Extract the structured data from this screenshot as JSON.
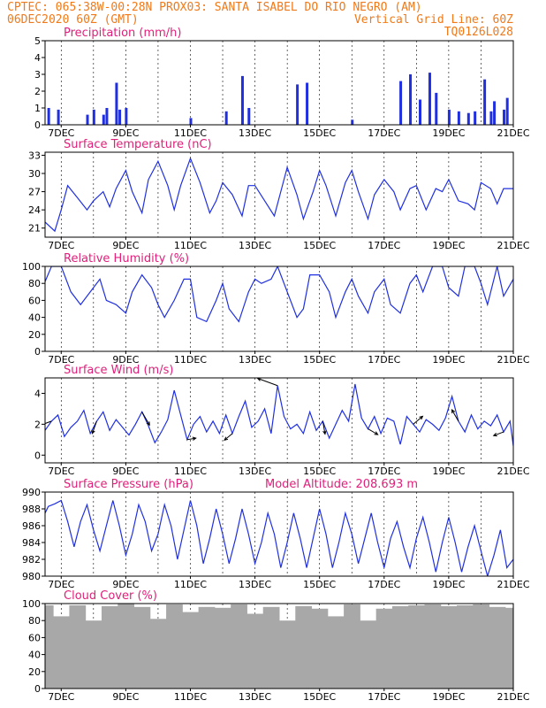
{
  "header": {
    "line1_left": "CPTEC:  065:38W-00:28N  PROX03: SANTA ISABEL DO RIO NEGRO (AM)",
    "line2_left": "06DEC2020 60Z (GMT)",
    "line2_right": "Vertical Grid Line: 60Z",
    "line3_right": "TQ0126L028"
  },
  "colors": {
    "header": "#f07a1a",
    "panel_title": "#e0207a",
    "series": "#2030e0",
    "cloud": "#a8a8a8",
    "arrow": "#000000"
  },
  "x_axis": {
    "tick_labels": [
      "7DEC",
      "9DEC",
      "11DEC",
      "13DEC",
      "15DEC",
      "17DEC",
      "19DEC",
      "21DEC"
    ],
    "tick_days": [
      7,
      9,
      11,
      13,
      15,
      17,
      19,
      21
    ],
    "range_days": [
      6.5,
      21.0
    ]
  },
  "chart_data": [
    {
      "type": "bar",
      "title": "Precipitation (mm/h)",
      "ylim": [
        0,
        5
      ],
      "yticks": [
        0,
        1,
        2,
        3,
        4,
        5
      ],
      "grid": "vertical dashed at 00Z",
      "x_days": [
        6.6,
        6.9,
        7.8,
        8.0,
        8.3,
        8.4,
        8.7,
        8.8,
        9.0,
        11.0,
        12.1,
        12.6,
        12.8,
        14.3,
        14.6,
        16.0,
        17.5,
        17.8,
        18.1,
        18.4,
        18.6,
        19.0,
        19.3,
        19.6,
        19.8,
        20.1,
        20.3,
        20.4,
        20.7,
        20.8
      ],
      "values": [
        1.0,
        0.9,
        0.6,
        0.9,
        0.6,
        1.0,
        2.5,
        0.9,
        1.0,
        0.4,
        0.8,
        2.9,
        1.0,
        2.4,
        2.5,
        0.3,
        2.6,
        3.0,
        1.5,
        3.1,
        1.9,
        0.9,
        0.8,
        0.7,
        0.8,
        2.7,
        0.8,
        1.4,
        0.9,
        1.6
      ]
    },
    {
      "type": "line",
      "title": "Surface Temperature (nC)",
      "ylim": [
        19.5,
        33.5
      ],
      "yticks": [
        21,
        24,
        27,
        30,
        33
      ],
      "x_days": [
        6.5,
        6.8,
        7.0,
        7.2,
        7.5,
        7.8,
        8.0,
        8.3,
        8.5,
        8.7,
        9.0,
        9.2,
        9.5,
        9.7,
        10.0,
        10.3,
        10.5,
        10.7,
        11.0,
        11.3,
        11.6,
        11.8,
        12.0,
        12.3,
        12.6,
        12.8,
        13.0,
        13.3,
        13.6,
        13.8,
        14.0,
        14.3,
        14.5,
        14.8,
        15.0,
        15.2,
        15.5,
        15.8,
        16.0,
        16.2,
        16.5,
        16.7,
        17.0,
        17.3,
        17.5,
        17.8,
        18.0,
        18.3,
        18.6,
        18.8,
        19.0,
        19.3,
        19.6,
        19.8,
        20.0,
        20.3,
        20.5,
        20.7,
        21.0
      ],
      "values": [
        22.0,
        20.5,
        24.0,
        28.0,
        26.0,
        24.0,
        25.5,
        27.0,
        24.5,
        27.5,
        30.5,
        27.0,
        23.5,
        29.0,
        32.0,
        28.0,
        24.0,
        28.0,
        32.5,
        28.5,
        23.5,
        25.5,
        28.5,
        26.5,
        23.0,
        28.0,
        28.0,
        25.5,
        23.0,
        27.0,
        31.0,
        26.5,
        22.5,
        27.0,
        30.5,
        28.0,
        23.0,
        28.5,
        30.5,
        27.0,
        22.5,
        26.5,
        29.0,
        27.0,
        24.0,
        27.5,
        28.0,
        24.0,
        27.5,
        27.0,
        29.0,
        25.5,
        25.0,
        24.0,
        28.5,
        27.5,
        25.0,
        27.5,
        27.5
      ]
    },
    {
      "type": "line",
      "title": "Relative Humidity (%)",
      "ylim": [
        0,
        100
      ],
      "yticks": [
        0,
        20,
        40,
        60,
        80,
        100
      ],
      "x_days": [
        6.5,
        6.7,
        7.0,
        7.3,
        7.6,
        7.8,
        8.0,
        8.2,
        8.4,
        8.7,
        9.0,
        9.2,
        9.5,
        9.8,
        10.0,
        10.2,
        10.5,
        10.8,
        11.0,
        11.2,
        11.5,
        11.8,
        12.0,
        12.2,
        12.5,
        12.8,
        13.0,
        13.2,
        13.5,
        13.7,
        14.0,
        14.3,
        14.5,
        14.7,
        15.0,
        15.3,
        15.5,
        15.8,
        16.0,
        16.2,
        16.5,
        16.7,
        17.0,
        17.2,
        17.5,
        17.8,
        18.0,
        18.2,
        18.5,
        18.8,
        19.0,
        19.3,
        19.5,
        19.8,
        20.0,
        20.2,
        20.5,
        20.7,
        21.0
      ],
      "values": [
        82,
        100,
        100,
        70,
        55,
        65,
        75,
        85,
        60,
        55,
        45,
        70,
        90,
        75,
        55,
        40,
        60,
        85,
        85,
        40,
        35,
        60,
        80,
        50,
        35,
        70,
        85,
        80,
        85,
        100,
        70,
        40,
        50,
        90,
        90,
        70,
        40,
        70,
        85,
        65,
        45,
        70,
        85,
        55,
        45,
        80,
        90,
        70,
        100,
        100,
        75,
        65,
        100,
        100,
        80,
        55,
        100,
        65,
        85
      ]
    },
    {
      "type": "line",
      "title": "Surface Wind (m/s)",
      "ylim": [
        -0.5,
        5.0
      ],
      "yticks": [
        0,
        2,
        4
      ],
      "wind_vectors": "arrows drawn along speed curve",
      "x_days": [
        6.5,
        6.7,
        6.9,
        7.1,
        7.3,
        7.5,
        7.7,
        7.9,
        8.1,
        8.3,
        8.5,
        8.7,
        8.9,
        9.1,
        9.3,
        9.5,
        9.7,
        9.9,
        10.1,
        10.3,
        10.5,
        10.7,
        10.9,
        11.1,
        11.3,
        11.5,
        11.7,
        11.9,
        12.1,
        12.3,
        12.5,
        12.7,
        12.9,
        13.1,
        13.3,
        13.5,
        13.7,
        13.9,
        14.1,
        14.3,
        14.5,
        14.7,
        14.9,
        15.1,
        15.3,
        15.5,
        15.7,
        15.9,
        16.1,
        16.3,
        16.5,
        16.7,
        16.9,
        17.1,
        17.3,
        17.5,
        17.7,
        17.9,
        18.1,
        18.3,
        18.5,
        18.7,
        18.9,
        19.1,
        19.3,
        19.5,
        19.7,
        19.9,
        20.1,
        20.3,
        20.5,
        20.7,
        20.9,
        21.0
      ],
      "values": [
        1.6,
        2.2,
        2.6,
        1.2,
        1.8,
        2.2,
        2.9,
        1.4,
        2.2,
        2.8,
        1.6,
        2.3,
        1.8,
        1.3,
        2.0,
        2.8,
        1.9,
        0.8,
        1.5,
        2.3,
        4.2,
        2.6,
        1.0,
        2.0,
        2.5,
        1.5,
        2.2,
        1.4,
        2.6,
        1.4,
        2.5,
        3.5,
        1.8,
        2.2,
        3.0,
        1.4,
        4.5,
        2.5,
        1.7,
        2.0,
        1.4,
        2.8,
        1.6,
        2.2,
        1.1,
        2.0,
        2.9,
        2.2,
        4.6,
        2.4,
        1.7,
        2.5,
        1.4,
        2.4,
        2.2,
        0.7,
        2.5,
        2.0,
        1.5,
        2.3,
        2.0,
        1.6,
        2.4,
        3.8,
        2.2,
        1.5,
        2.6,
        1.7,
        2.2,
        1.9,
        2.6,
        1.5,
        2.2,
        0.6
      ]
    },
    {
      "type": "line",
      "title": "Surface Pressure (hPa)",
      "annotation": "Model Altitude: 208.693 m",
      "ylim": [
        980,
        990
      ],
      "yticks": [
        980,
        982,
        984,
        986,
        988,
        990
      ],
      "x_days": [
        6.5,
        6.6,
        6.8,
        7.0,
        7.2,
        7.4,
        7.6,
        7.8,
        8.0,
        8.2,
        8.4,
        8.6,
        8.8,
        9.0,
        9.2,
        9.4,
        9.6,
        9.8,
        10.0,
        10.2,
        10.4,
        10.6,
        10.8,
        11.0,
        11.2,
        11.4,
        11.6,
        11.8,
        12.0,
        12.2,
        12.4,
        12.6,
        12.8,
        13.0,
        13.2,
        13.4,
        13.6,
        13.8,
        14.0,
        14.2,
        14.4,
        14.6,
        14.8,
        15.0,
        15.2,
        15.4,
        15.6,
        15.8,
        16.0,
        16.2,
        16.4,
        16.6,
        16.8,
        17.0,
        17.2,
        17.4,
        17.6,
        17.8,
        18.0,
        18.2,
        18.4,
        18.6,
        18.8,
        19.0,
        19.2,
        19.4,
        19.6,
        19.8,
        20.0,
        20.2,
        20.4,
        20.6,
        20.8,
        21.0
      ],
      "values": [
        987.5,
        988.3,
        988.6,
        989.0,
        986.5,
        983.5,
        986.5,
        988.5,
        985.5,
        983.0,
        986.0,
        989.0,
        986.0,
        982.5,
        985.0,
        988.5,
        986.5,
        983.0,
        985.0,
        988.5,
        986.0,
        982.0,
        985.5,
        989.0,
        986.0,
        981.5,
        984.5,
        988.0,
        985.0,
        981.5,
        984.5,
        988.0,
        985.0,
        981.5,
        984.0,
        987.5,
        985.0,
        981.0,
        984.0,
        987.5,
        984.5,
        981.0,
        984.5,
        988.0,
        985.0,
        981.0,
        984.0,
        987.5,
        985.0,
        981.5,
        984.5,
        987.5,
        984.0,
        981.0,
        984.5,
        986.5,
        983.5,
        981.0,
        984.5,
        987.0,
        984.0,
        980.5,
        984.0,
        987.0,
        984.0,
        980.5,
        983.5,
        986.0,
        983.0,
        980.0,
        982.5,
        985.5,
        981.0,
        982.0
      ]
    },
    {
      "type": "bar",
      "title": "Cloud Cover (%)",
      "ylim": [
        0,
        100
      ],
      "yticks": [
        0,
        20,
        40,
        60,
        80,
        100
      ],
      "x_days": [
        6.5,
        7.0,
        7.5,
        8.0,
        8.5,
        9.0,
        9.5,
        10.0,
        10.5,
        11.0,
        11.5,
        12.0,
        12.5,
        13.0,
        13.5,
        14.0,
        14.5,
        15.0,
        15.5,
        16.0,
        16.5,
        17.0,
        17.5,
        18.0,
        18.5,
        19.0,
        19.5,
        20.0,
        20.5,
        21.0
      ],
      "values": [
        98,
        85,
        98,
        80,
        97,
        100,
        96,
        82,
        99,
        90,
        96,
        95,
        99,
        88,
        96,
        80,
        97,
        94,
        85,
        99,
        80,
        94,
        97,
        98,
        99,
        97,
        98,
        99,
        96,
        95
      ]
    }
  ]
}
